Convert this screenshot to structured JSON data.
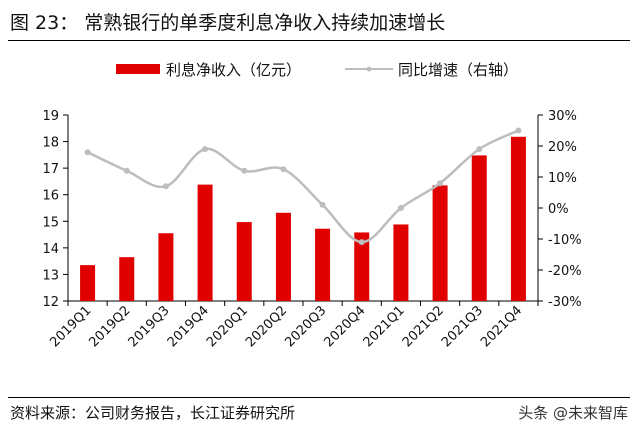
{
  "figure": {
    "label": "图 23：",
    "title": "常熟银行的单季度利息净收入持续加速增长",
    "source": "资料来源：公司财务报告，长江证券研究所",
    "watermark": "头条 @未来智库"
  },
  "colors": {
    "bar": "#e00000",
    "line": "#bdbdbd",
    "axis": "#000000"
  },
  "chart_data": {
    "type": "bar",
    "categories": [
      "2019Q1",
      "2019Q2",
      "2019Q3",
      "2019Q4",
      "2020Q1",
      "2020Q2",
      "2020Q3",
      "2020Q4",
      "2021Q1",
      "2021Q2",
      "2021Q3",
      "2021Q4"
    ],
    "series": [
      {
        "name": "利息净收入（亿元）",
        "type": "bar",
        "axis": "left",
        "values": [
          13.35,
          13.65,
          14.55,
          16.38,
          14.97,
          15.32,
          14.72,
          14.58,
          14.88,
          16.35,
          17.48,
          18.18
        ]
      },
      {
        "name": "同比增速（右轴）",
        "type": "line",
        "axis": "right",
        "values": [
          18.0,
          12.0,
          7.0,
          19.0,
          12.0,
          12.5,
          1.0,
          -11.0,
          0.0,
          8.0,
          19.0,
          25.0
        ]
      }
    ],
    "y_left": {
      "lim": [
        12,
        19
      ],
      "ticks": [
        "12",
        "13",
        "14",
        "15",
        "16",
        "17",
        "18",
        "19"
      ]
    },
    "y_right": {
      "lim": [
        -30,
        30
      ],
      "ticks": [
        "-30%",
        "-20%",
        "-10%",
        "0%",
        "10%",
        "20%",
        "30%"
      ]
    },
    "legend_placement": "top",
    "grid": false
  }
}
